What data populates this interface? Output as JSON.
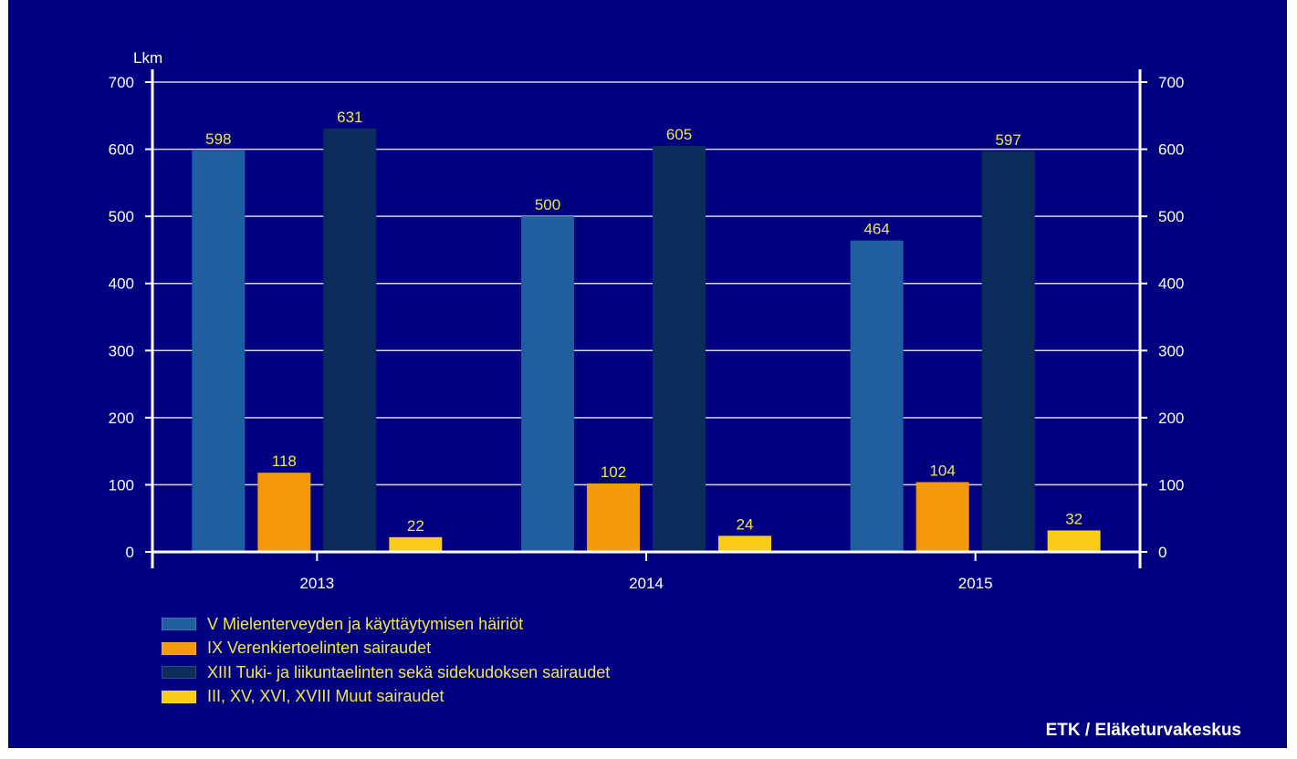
{
  "chart_data": {
    "type": "bar",
    "title": "",
    "ylabel": "Lkm",
    "xlabel": "",
    "categories": [
      "2013",
      "2014",
      "2015"
    ],
    "ylim": [
      0,
      700
    ],
    "yticks": [
      0,
      100,
      200,
      300,
      400,
      500,
      600,
      700
    ],
    "grid": true,
    "secondary_axis": "right (same scale)",
    "legend_position": "bottom-left",
    "series": [
      {
        "name": "V Mielenterveyden ja käyttäytymisen häiriöt",
        "color": "#1f5fa0",
        "values": [
          598,
          500,
          464
        ]
      },
      {
        "name": "IX Verenkiertoelinten sairaudet",
        "color": "#f49a0a",
        "values": [
          118,
          102,
          104
        ]
      },
      {
        "name": "XIII Tuki- ja liikuntaelinten sekä sidekudoksen sairaudet",
        "color": "#0c2d5c",
        "values": [
          631,
          605,
          597
        ]
      },
      {
        "name": "III, XV, XVI, XVIII Muut sairaudet",
        "color": "#f9cc18",
        "values": [
          22,
          24,
          32
        ]
      }
    ]
  },
  "source_text": "ETK / Eläketurvakeskus"
}
